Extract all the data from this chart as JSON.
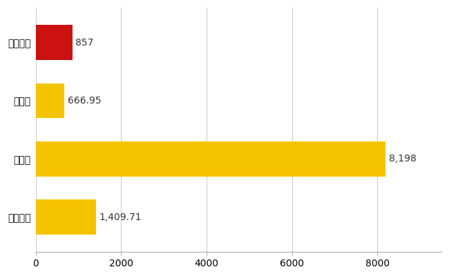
{
  "categories": [
    "駒ヶ根市",
    "県平均",
    "県最大",
    "全国平均"
  ],
  "values": [
    857,
    666.95,
    8198,
    1409.71
  ],
  "labels": [
    "857",
    "666.95",
    "8,198",
    "1,409.71"
  ],
  "bar_colors": [
    "#cc1111",
    "#f5c400",
    "#f5c400",
    "#f5c400"
  ],
  "xlim": [
    0,
    9500
  ],
  "xticks": [
    0,
    2000,
    4000,
    6000,
    8000
  ],
  "background_color": "#ffffff",
  "grid_color": "#cccccc",
  "label_fontsize": 10,
  "tick_fontsize": 10,
  "bar_height": 0.6
}
